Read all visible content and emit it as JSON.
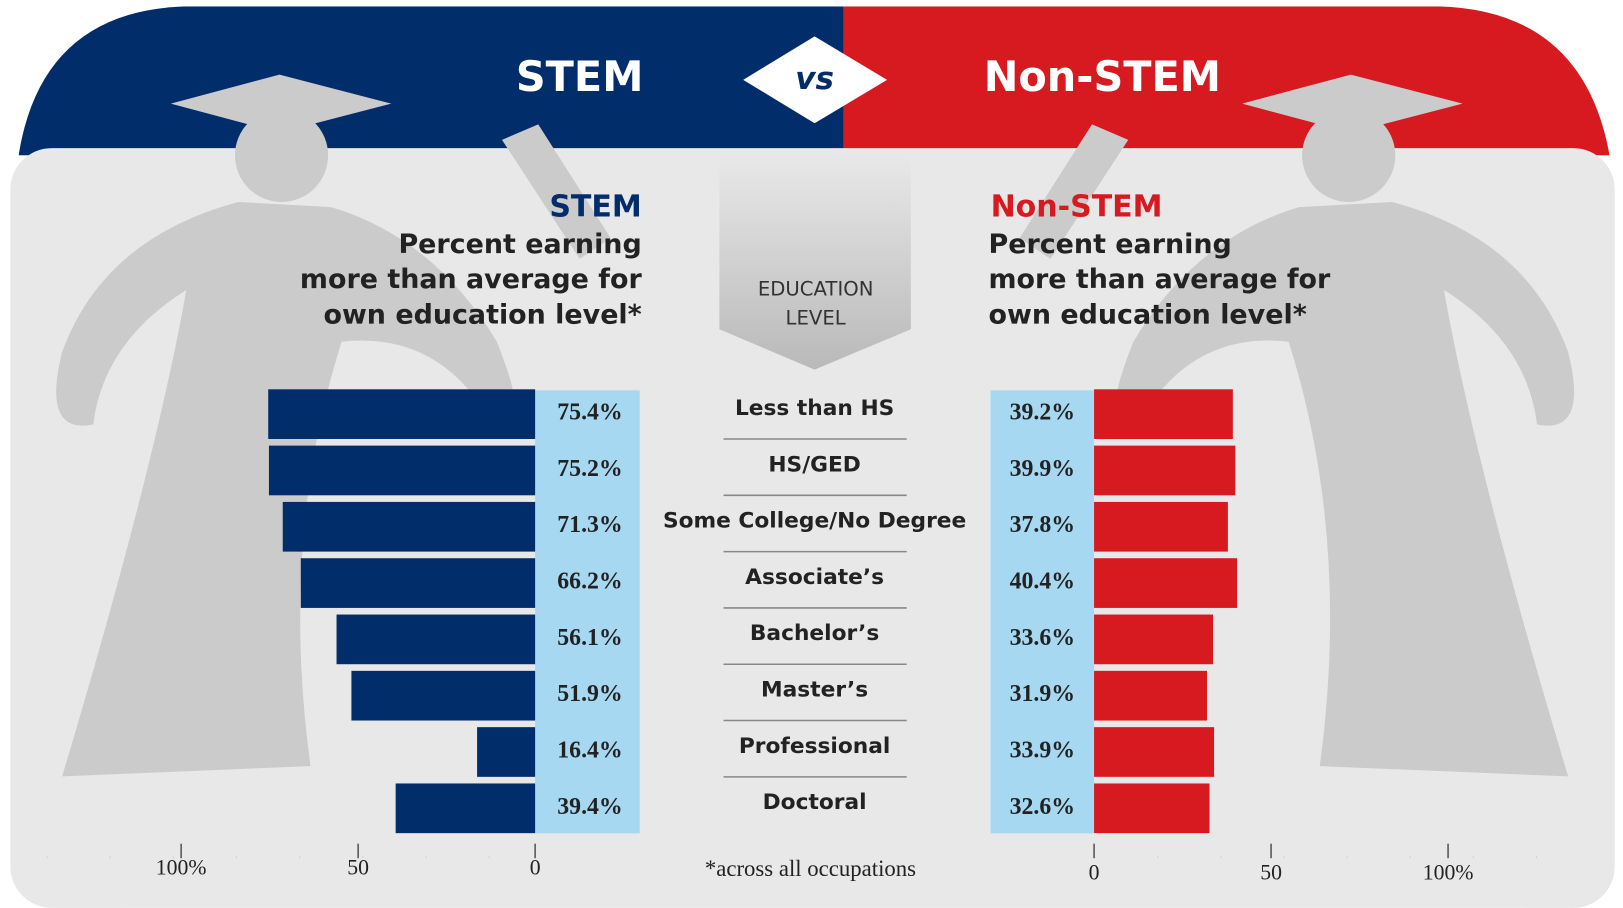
{
  "header": {
    "left": "STEM",
    "vs": "vs",
    "right": "Non-STEM"
  },
  "chart_data": {
    "type": "bar",
    "education_label": [
      "EDUCATION",
      "LEVEL"
    ],
    "footnote": "*across all occupations",
    "categories": [
      "Less than HS",
      "HS/GED",
      "Some College/No Degree",
      "Associate’s",
      "Bachelor’s",
      "Master’s",
      "Professional",
      "Doctoral"
    ],
    "series": [
      {
        "name": "STEM",
        "title": [
          "Percent earning",
          "more than average for",
          "own education level*"
        ],
        "color": "#022d6b",
        "label_background": "#a6d8f2",
        "values": [
          75.4,
          75.2,
          71.3,
          66.2,
          56.1,
          51.9,
          16.4,
          39.4
        ],
        "value_labels": [
          "75.4%",
          "75.2%",
          "71.3%",
          "66.2%",
          "56.1%",
          "51.9%",
          "16.4%",
          "39.4%"
        ]
      },
      {
        "name": "Non-STEM",
        "title": [
          "Percent earning",
          "more than average for",
          "own education level*"
        ],
        "color": "#d71920",
        "label_background": "#a6d8f2",
        "values": [
          39.2,
          39.9,
          37.8,
          40.4,
          33.6,
          31.9,
          33.9,
          32.6
        ],
        "value_labels": [
          "39.2%",
          "39.9%",
          "37.8%",
          "40.4%",
          "33.6%",
          "31.9%",
          "33.9%",
          "32.6%"
        ]
      }
    ],
    "xlim": [
      0,
      100
    ],
    "xticks": [
      0,
      50,
      {
        "value": 100,
        "label": "100%"
      }
    ]
  }
}
